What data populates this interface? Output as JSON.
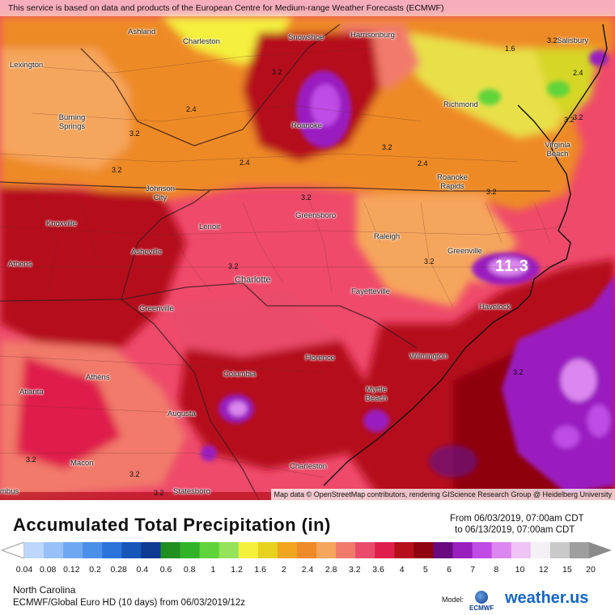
{
  "banner": "This service is based on data and products of the European Centre for Medium-range Weather Forecasts (ECMWF)",
  "attribution": "Map data © OpenStreetMap contributors, rendering GIScience Research Group @ Heidelberg University",
  "cities": [
    {
      "name": "Ashland"
    },
    {
      "name": "Charleston"
    },
    {
      "name": "Snowshoe"
    },
    {
      "name": "Harrisonburg"
    },
    {
      "name": "Salisbury"
    },
    {
      "name": "Lexington"
    },
    {
      "name": "Richmond"
    },
    {
      "name": "Roanoke"
    },
    {
      "name": "Burning Springs"
    },
    {
      "name": "Virginia Beach"
    },
    {
      "name": "Johnson City"
    },
    {
      "name": "Roanoke Rapids"
    },
    {
      "name": "Greensboro"
    },
    {
      "name": "Knoxville"
    },
    {
      "name": "Lenoir"
    },
    {
      "name": "Raleigh"
    },
    {
      "name": "Asheville"
    },
    {
      "name": "Greenville"
    },
    {
      "name": "Athens"
    },
    {
      "name": "Charlotte"
    },
    {
      "name": "Fayetteville"
    },
    {
      "name": "Havelock"
    },
    {
      "name": "Greenville"
    },
    {
      "name": "Wilmington"
    },
    {
      "name": "Florence"
    },
    {
      "name": "Athens"
    },
    {
      "name": "Columbia"
    },
    {
      "name": "Myrtle Beach"
    },
    {
      "name": "Atlanta"
    },
    {
      "name": "Augusta"
    },
    {
      "name": "Macon"
    },
    {
      "name": "Charleston"
    },
    {
      "name": "Statesboro"
    },
    {
      "name": "mbus"
    }
  ],
  "contour_labels": [
    "3.2",
    "3.2",
    "2.4",
    "1.6",
    "2.4",
    "3.2",
    "3.2",
    "3.2",
    "2.4",
    "3.2",
    "2.4",
    "3.2",
    "3.2",
    "3.2",
    "3.2",
    "3.2",
    "3.2",
    "3.2",
    "3.2",
    "3.2"
  ],
  "max_label": "11.3",
  "legend": {
    "title": "Accumulated Total Precipitation (in)",
    "from": "From 06/03/2019, 07:00am CDT",
    "to": "to 06/13/2019, 07:00am CDT",
    "ticks": [
      "0.04",
      "0.08",
      "0.12",
      "0.2",
      "0.28",
      "0.4",
      "0.6",
      "0.8",
      "1",
      "1.2",
      "1.6",
      "2",
      "2.4",
      "2.8",
      "3.2",
      "3.6",
      "4",
      "5",
      "6",
      "7",
      "8",
      "10",
      "12",
      "15",
      "20"
    ],
    "colors": [
      "#bcd7fb",
      "#97c1f8",
      "#6fa8f2",
      "#4a8fea",
      "#2874d9",
      "#1656b8",
      "#0e3a92",
      "#1f8f1f",
      "#30b326",
      "#5fd43a",
      "#94e35a",
      "#f4f03c",
      "#e6d21e",
      "#f2a51e",
      "#ee8a27",
      "#f6a55c",
      "#f17a6b",
      "#ea4b6a",
      "#df1f4b",
      "#b50f1c",
      "#8f0010",
      "#6b0a80",
      "#9a1fbf",
      "#c04be6",
      "#dc86ef",
      "#efc3f6",
      "#f5f0f5",
      "#c9c9c9",
      "#9e9e9e"
    ]
  },
  "region": "North Carolina",
  "model_line": "ECMWF/Global Euro HD (10 days) from 06/03/2019/12z",
  "model_label": "Model:",
  "ecmwf_logo": "ECMWF",
  "brand": "weather.us"
}
